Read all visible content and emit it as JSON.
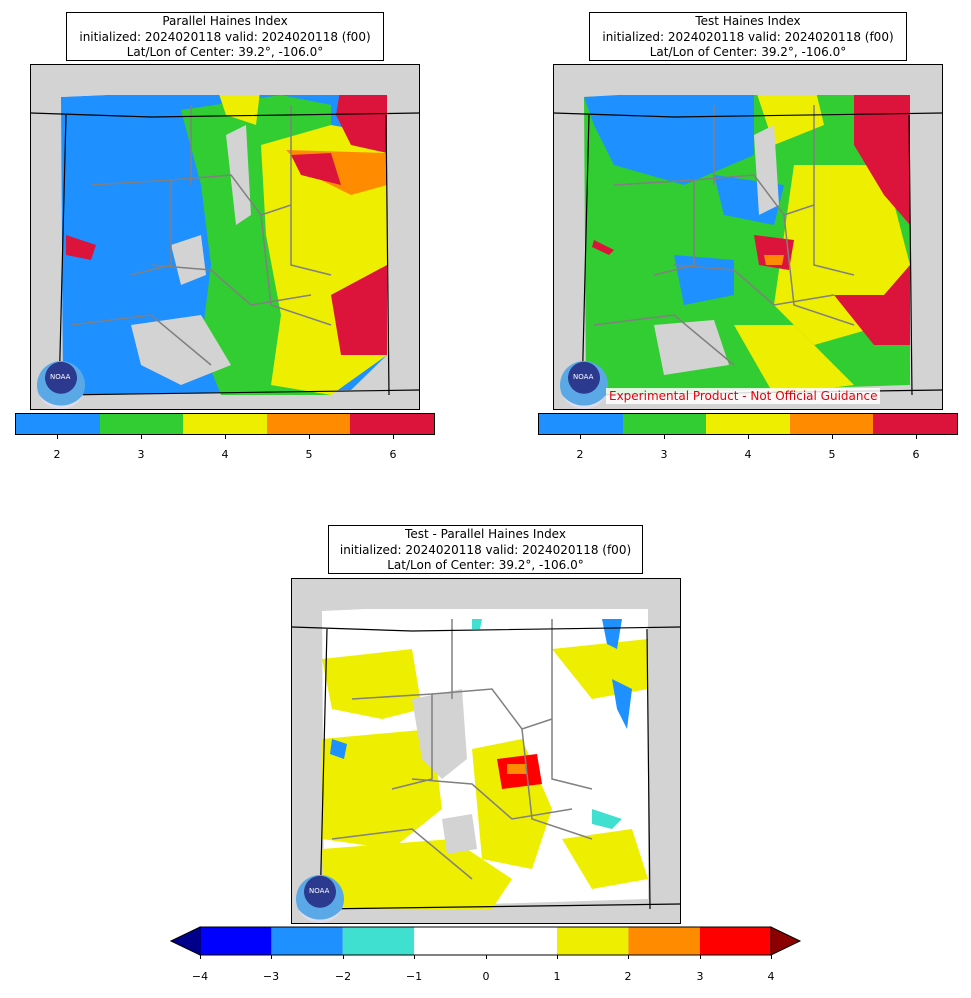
{
  "panels": [
    {
      "title_line1": "Parallel Haines Index",
      "title_line2": "initialized: 2024020118 valid: 2024020118 (f00)",
      "title_line3": "Lat/Lon of Center: 39.2°, -106.0°",
      "logo": "noaa-logo",
      "logo_text": "NOAA"
    },
    {
      "title_line1": "Test Haines Index",
      "title_line2": "initialized: 2024020118 valid: 2024020118 (f00)",
      "title_line3": "Lat/Lon of Center: 39.2°, -106.0°",
      "logo": "noaa-logo",
      "logo_text": "NOAA",
      "watermark": "Experimental Product - Not Official Guidance"
    },
    {
      "title_line1": "Test - Parallel Haines Index",
      "title_line2": "initialized: 2024020118 valid: 2024020118 (f00)",
      "title_line3": "Lat/Lon of Center: 39.2°, -106.0°",
      "logo": "noaa-logo",
      "logo_text": "NOAA"
    }
  ],
  "colorbar_haines": {
    "ticks": [
      "2",
      "3",
      "4",
      "5",
      "6"
    ],
    "colors": [
      "#1e90ff",
      "#32cd32",
      "#eeee00",
      "#ff8c00",
      "#dc143c"
    ]
  },
  "colorbar_diff": {
    "ticks": [
      "−4",
      "−3",
      "−2",
      "−1",
      "0",
      "1",
      "2",
      "3",
      "4"
    ],
    "colors": [
      "#0000ff",
      "#1e90ff",
      "#40e0d0",
      "#ffffff",
      "#ffffff",
      "#eeee00",
      "#ff8c00",
      "#ff0000"
    ],
    "under_color": "#00008b",
    "over_color": "#8b0000"
  },
  "colors": {
    "land_mask": "#d3d3d3",
    "county_lines": "#808080",
    "state_lines": "#000000"
  }
}
